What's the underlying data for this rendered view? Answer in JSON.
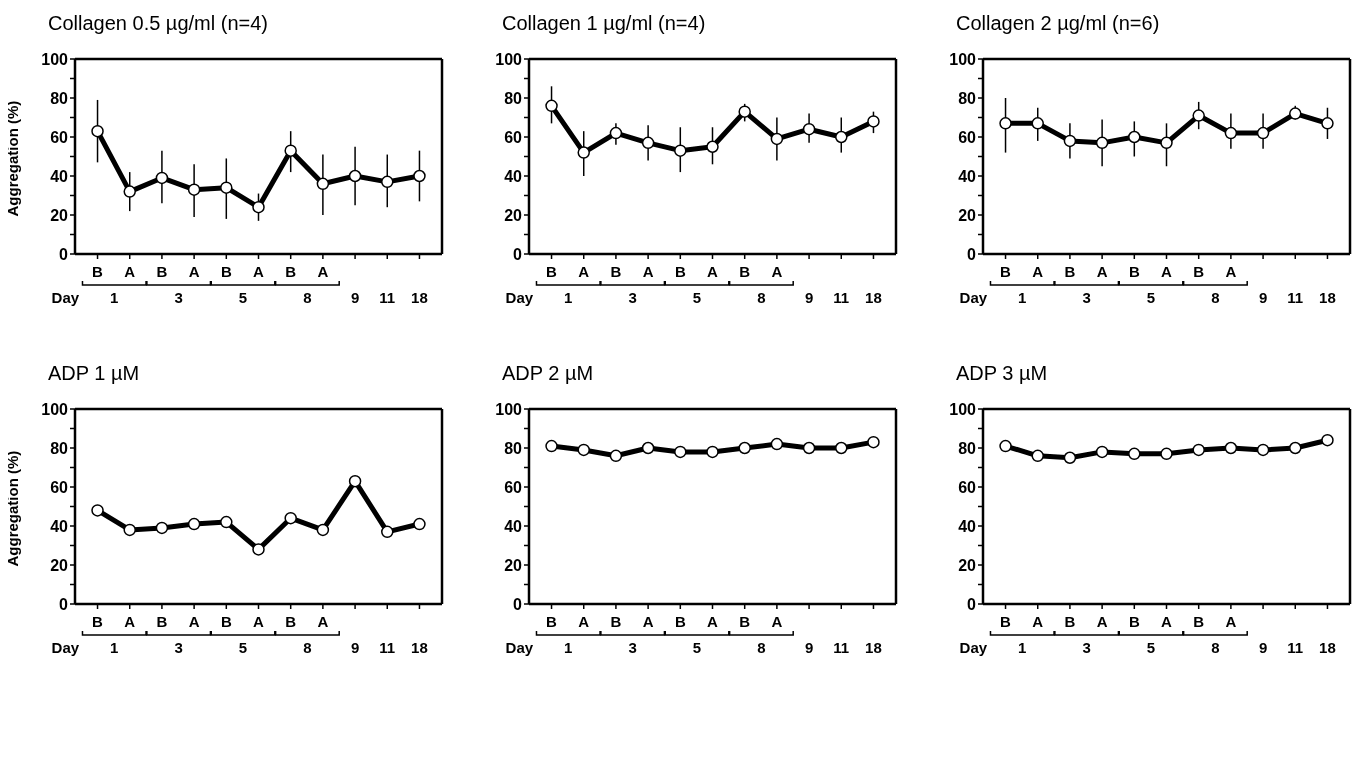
{
  "chart_data": [
    {
      "type": "line",
      "title": "Collagen 0.5 µg/ml (n=4)",
      "ylabel": "Aggregation (%)",
      "categories": [
        "B",
        "A",
        "B",
        "A",
        "B",
        "A",
        "B",
        "A",
        "9",
        "11",
        "18"
      ],
      "annotations": [
        "Day",
        "1",
        "3",
        "5",
        "8"
      ],
      "ylim": [
        0,
        100
      ],
      "yticks": [
        0,
        {
          "value": 10,
          "label": null
        },
        20,
        {
          "value": 30,
          "label": null
        },
        40,
        {
          "value": 50,
          "label": null
        },
        60,
        {
          "value": 70,
          "label": null
        },
        80,
        {
          "value": 90,
          "label": null
        },
        100
      ],
      "grid": false,
      "marker": "circle",
      "series": [
        {
          "color": "#000000",
          "values": [
            63,
            32,
            39,
            33,
            34,
            24,
            53,
            36,
            40,
            37,
            40
          ],
          "errors": [
            [
              47,
              79
            ],
            [
              22,
              42
            ],
            [
              26,
              53
            ],
            [
              19,
              46
            ],
            [
              18,
              49
            ],
            [
              17,
              31
            ],
            [
              42,
              63
            ],
            [
              20,
              51
            ],
            [
              25,
              55
            ],
            [
              24,
              51
            ],
            [
              27,
              53
            ]
          ]
        }
      ]
    },
    {
      "type": "line",
      "title": "Collagen 1 µg/ml (n=4)",
      "categories": [
        "B",
        "A",
        "B",
        "A",
        "B",
        "A",
        "B",
        "A",
        "9",
        "11",
        "18"
      ],
      "annotations": [
        "Day",
        "1",
        "3",
        "5",
        "8"
      ],
      "ylim": [
        0,
        100
      ],
      "yticks": [
        0,
        {
          "value": 10,
          "label": null
        },
        20,
        {
          "value": 30,
          "label": null
        },
        40,
        {
          "value": 50,
          "label": null
        },
        60,
        {
          "value": 70,
          "label": null
        },
        80,
        {
          "value": 90,
          "label": null
        },
        100
      ],
      "grid": false,
      "marker": "circle",
      "series": [
        {
          "color": "#000000",
          "values": [
            76,
            52,
            62,
            57,
            53,
            55,
            73,
            59,
            64,
            60,
            68
          ],
          "errors": [
            [
              67,
              86
            ],
            [
              40,
              63
            ],
            [
              56,
              67
            ],
            [
              48,
              66
            ],
            [
              42,
              65
            ],
            [
              46,
              65
            ],
            [
              68,
              77
            ],
            [
              48,
              70
            ],
            [
              57,
              72
            ],
            [
              52,
              70
            ],
            [
              62,
              73
            ]
          ]
        }
      ]
    },
    {
      "type": "line",
      "title": "Collagen 2 µg/ml (n=6)",
      "categories": [
        "B",
        "A",
        "B",
        "A",
        "B",
        "A",
        "B",
        "A",
        "9",
        "11",
        "18"
      ],
      "annotations": [
        "Day",
        "1",
        "3",
        "5",
        "8"
      ],
      "ylim": [
        0,
        100
      ],
      "yticks": [
        0,
        {
          "value": 10,
          "label": null
        },
        20,
        {
          "value": 30,
          "label": null
        },
        40,
        {
          "value": 50,
          "label": null
        },
        60,
        {
          "value": 70,
          "label": null
        },
        80,
        {
          "value": 90,
          "label": null
        },
        100
      ],
      "grid": false,
      "marker": "circle",
      "series": [
        {
          "color": "#000000",
          "values": [
            67,
            67,
            58,
            57,
            60,
            57,
            71,
            62,
            62,
            72,
            67
          ],
          "errors": [
            [
              52,
              80
            ],
            [
              58,
              75
            ],
            [
              49,
              67
            ],
            [
              45,
              69
            ],
            [
              50,
              68
            ],
            [
              45,
              67
            ],
            [
              64,
              78
            ],
            [
              54,
              72
            ],
            [
              54,
              72
            ],
            [
              69,
              76
            ],
            [
              59,
              75
            ]
          ]
        }
      ]
    },
    {
      "type": "line",
      "title": "ADP 1 µM",
      "ylabel": "Aggregation (%)",
      "categories": [
        "B",
        "A",
        "B",
        "A",
        "B",
        "A",
        "B",
        "A",
        "9",
        "11",
        "18"
      ],
      "annotations": [
        "Day",
        "1",
        "3",
        "5",
        "8"
      ],
      "ylim": [
        0,
        100
      ],
      "yticks": [
        0,
        {
          "value": 10,
          "label": null
        },
        20,
        {
          "value": 30,
          "label": null
        },
        40,
        {
          "value": 50,
          "label": null
        },
        60,
        {
          "value": 70,
          "label": null
        },
        80,
        {
          "value": 90,
          "label": null
        },
        100
      ],
      "grid": false,
      "marker": "circle",
      "series": [
        {
          "color": "#000000",
          "values": [
            48,
            38,
            39,
            41,
            42,
            28,
            44,
            38,
            63,
            37,
            41
          ]
        }
      ]
    },
    {
      "type": "line",
      "title": "ADP 2 µM",
      "categories": [
        "B",
        "A",
        "B",
        "A",
        "B",
        "A",
        "B",
        "A",
        "9",
        "11",
        "18"
      ],
      "annotations": [
        "Day",
        "1",
        "3",
        "5",
        "8"
      ],
      "ylim": [
        0,
        100
      ],
      "yticks": [
        0,
        {
          "value": 10,
          "label": null
        },
        20,
        {
          "value": 30,
          "label": null
        },
        40,
        {
          "value": 50,
          "label": null
        },
        60,
        {
          "value": 70,
          "label": null
        },
        80,
        {
          "value": 90,
          "label": null
        },
        100
      ],
      "grid": false,
      "marker": "circle",
      "series": [
        {
          "color": "#000000",
          "values": [
            81,
            79,
            76,
            80,
            78,
            78,
            80,
            82,
            80,
            80,
            83
          ]
        }
      ]
    },
    {
      "type": "line",
      "title": "ADP 3 µM",
      "categories": [
        "B",
        "A",
        "B",
        "A",
        "B",
        "A",
        "B",
        "A",
        "9",
        "11",
        "18"
      ],
      "annotations": [
        "Day",
        "1",
        "3",
        "5",
        "8"
      ],
      "ylim": [
        0,
        100
      ],
      "yticks": [
        0,
        {
          "value": 10,
          "label": null
        },
        20,
        {
          "value": 30,
          "label": null
        },
        40,
        {
          "value": 50,
          "label": null
        },
        60,
        {
          "value": 70,
          "label": null
        },
        80,
        {
          "value": 90,
          "label": null
        },
        100
      ],
      "grid": false,
      "marker": "circle",
      "series": [
        {
          "color": "#000000",
          "values": [
            81,
            76,
            75,
            78,
            77,
            77,
            79,
            80,
            79,
            80,
            84
          ]
        }
      ]
    }
  ]
}
